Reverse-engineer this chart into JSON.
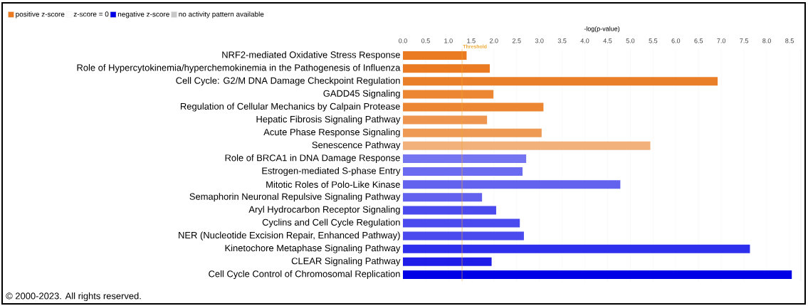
{
  "chart_data": {
    "type": "bar",
    "orientation": "horizontal",
    "xlabel": "-log(p-value)",
    "categories": [
      "NRF2-mediated Oxidative Stress Response",
      "Role of Hypercytokinemia/hyperchemokinemia in the Pathogenesis of Influenza",
      "Cell Cycle: G2/M DNA Damage Checkpoint Regulation",
      "GADD45 Signaling",
      "Regulation of Cellular Mechanics by Calpain Protease",
      "Hepatic Fibrosis Signaling Pathway",
      "Acute Phase Response Signaling",
      "Senescence Pathway",
      "Role of BRCA1 in DNA Damage Response",
      "Estrogen-mediated S-phase Entry",
      "Mitotic Roles of Polo-Like Kinase",
      "Semaphorin Neuronal Repulsive Signaling Pathway",
      "Aryl Hydrocarbon Receptor Signaling",
      "Cyclins and Cell Cycle Regulation",
      "NER (Nucleotide Excision Repair, Enhanced Pathway)",
      "Kinetochore Metaphase Signaling Pathway",
      "CLEAR Signaling Pathway",
      "Cell Cycle Control of Chromosomal Replication"
    ],
    "series": [
      {
        "name": "positive z-score",
        "color": "#ea7b22",
        "values": [
          1.4,
          1.91,
          6.92,
          1.99,
          3.09,
          1.85,
          3.05,
          5.44,
          null,
          null,
          null,
          null,
          null,
          null,
          null,
          null,
          null,
          null
        ],
        "colors": [
          "#ea7b22",
          "#ea7b22",
          "#ea7f2a",
          "#ec8633",
          "#ec8633",
          "#ee9650",
          "#ee9a54",
          "#f2b07b",
          null,
          null,
          null,
          null,
          null,
          null,
          null,
          null,
          null,
          null
        ]
      },
      {
        "name": "z-score = 0",
        "color": "#ffffff",
        "values": [
          null,
          null,
          null,
          null,
          null,
          null,
          null,
          null,
          null,
          null,
          null,
          null,
          null,
          null,
          null,
          null,
          null,
          null
        ]
      },
      {
        "name": "negative z-score",
        "color": "#0000e6",
        "values": [
          null,
          null,
          null,
          null,
          null,
          null,
          null,
          null,
          2.71,
          2.63,
          4.78,
          1.74,
          2.05,
          2.57,
          2.66,
          7.63,
          1.95,
          8.55
        ],
        "colors": [
          null,
          null,
          null,
          null,
          null,
          null,
          null,
          null,
          "#7575f2",
          "#6b6bf2",
          "#6262ef",
          "#6262ef",
          "#4a4aee",
          "#4a4aee",
          "#4a4aee",
          "#2e2eed",
          "#1e1ee8",
          "#0000e6"
        ]
      },
      {
        "name": "no activity pattern available",
        "color": "#c8c8c8",
        "values": [
          null,
          null,
          null,
          null,
          null,
          null,
          null,
          null,
          null,
          null,
          null,
          null,
          null,
          null,
          null,
          null,
          null,
          null
        ]
      }
    ],
    "xlim": [
      0,
      8.75
    ],
    "xticks": [
      {
        "value": 0,
        "label": "0.0"
      },
      0.5,
      {
        "value": 1,
        "label": "1.0"
      },
      1.5,
      {
        "value": 2,
        "label": "2.0"
      },
      2.5,
      {
        "value": 3,
        "label": "3.0"
      },
      3.5,
      {
        "value": 4,
        "label": "4.0"
      },
      4.5,
      {
        "value": 5,
        "label": "5.0"
      },
      5.5,
      {
        "value": 6,
        "label": "6.0"
      },
      6.5,
      {
        "value": 7,
        "label": "7.0"
      },
      7.5,
      {
        "value": 8,
        "label": "8.0"
      },
      8.5
    ],
    "ref_lines": [
      {
        "axis": "x",
        "value": 1.3,
        "label": "Threshold",
        "color": "#f0a830"
      }
    ],
    "grid": "x",
    "legend": "top left",
    "annotations": [
      "© 2000-2023. All rights reserved."
    ]
  }
}
